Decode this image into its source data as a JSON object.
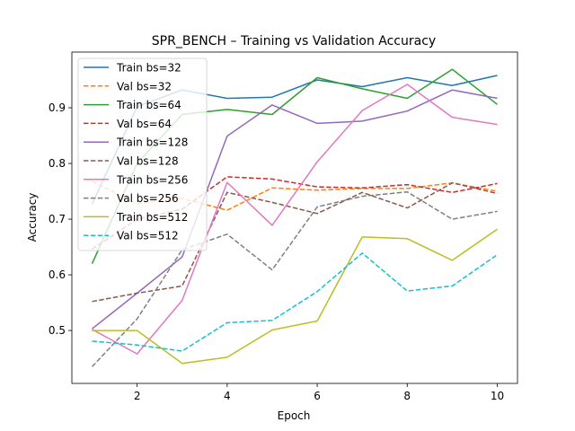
{
  "chart_data": {
    "type": "line",
    "title": "SPR_BENCH – Training vs Validation Accuracy",
    "xlabel": "Epoch",
    "ylabel": "Accuracy",
    "xlim": [
      0.55,
      10.45
    ],
    "ylim": [
      0.405,
      1.0
    ],
    "xticks": [
      2,
      4,
      6,
      8,
      10
    ],
    "yticks": [
      0.5,
      0.6,
      0.7,
      0.8,
      0.9
    ],
    "ytick_labels": [
      "0.5",
      "0.6",
      "0.7",
      "0.8",
      "0.9"
    ],
    "grid": false,
    "legend_position": "upper-left",
    "x": [
      1,
      2,
      3,
      4,
      5,
      6,
      7,
      8,
      9,
      10
    ],
    "series": [
      {
        "name": "Train bs=32",
        "color": "#1f77b4",
        "dash": false,
        "values": [
          0.727,
          0.902,
          0.932,
          0.917,
          0.919,
          0.95,
          0.938,
          0.954,
          0.94,
          0.958
        ]
      },
      {
        "name": "Val bs=32",
        "color": "#ff7f0e",
        "dash": true,
        "values": [
          0.768,
          0.728,
          0.737,
          0.716,
          0.756,
          0.752,
          0.755,
          0.755,
          0.765,
          0.75
        ]
      },
      {
        "name": "Train bs=64",
        "color": "#2ca02c",
        "dash": false,
        "values": [
          0.62,
          0.8,
          0.888,
          0.897,
          0.888,
          0.954,
          0.934,
          0.917,
          0.969,
          0.906
        ]
      },
      {
        "name": "Val bs=64",
        "color": "#d62728",
        "dash": true,
        "values": [
          0.646,
          0.7,
          0.718,
          0.776,
          0.772,
          0.758,
          0.756,
          0.762,
          0.748,
          0.764
        ]
      },
      {
        "name": "Train bs=128",
        "color": "#9467bd",
        "dash": false,
        "values": [
          0.503,
          0.567,
          0.632,
          0.849,
          0.905,
          0.872,
          0.876,
          0.894,
          0.932,
          0.917
        ]
      },
      {
        "name": "Val bs=128",
        "color": "#8c564b",
        "dash": true,
        "values": [
          0.552,
          0.567,
          0.58,
          0.748,
          0.73,
          0.71,
          0.748,
          0.72,
          0.765,
          0.746
        ]
      },
      {
        "name": "Train bs=256",
        "color": "#e377c2",
        "dash": false,
        "values": [
          0.502,
          0.458,
          0.554,
          0.766,
          0.689,
          0.803,
          0.895,
          0.942,
          0.883,
          0.87
        ]
      },
      {
        "name": "Val bs=256",
        "color": "#7f7f7f",
        "dash": true,
        "values": [
          0.435,
          0.521,
          0.645,
          0.673,
          0.609,
          0.722,
          0.741,
          0.749,
          0.7,
          0.714
        ]
      },
      {
        "name": "Train bs=512",
        "color": "#bcbd22",
        "dash": false,
        "values": [
          0.5,
          0.5,
          0.441,
          0.452,
          0.501,
          0.517,
          0.668,
          0.665,
          0.626,
          0.682
        ]
      },
      {
        "name": "Val bs=512",
        "color": "#17becf",
        "dash": true,
        "values": [
          0.481,
          0.474,
          0.463,
          0.514,
          0.518,
          0.57,
          0.639,
          0.571,
          0.58,
          0.636
        ]
      }
    ]
  }
}
